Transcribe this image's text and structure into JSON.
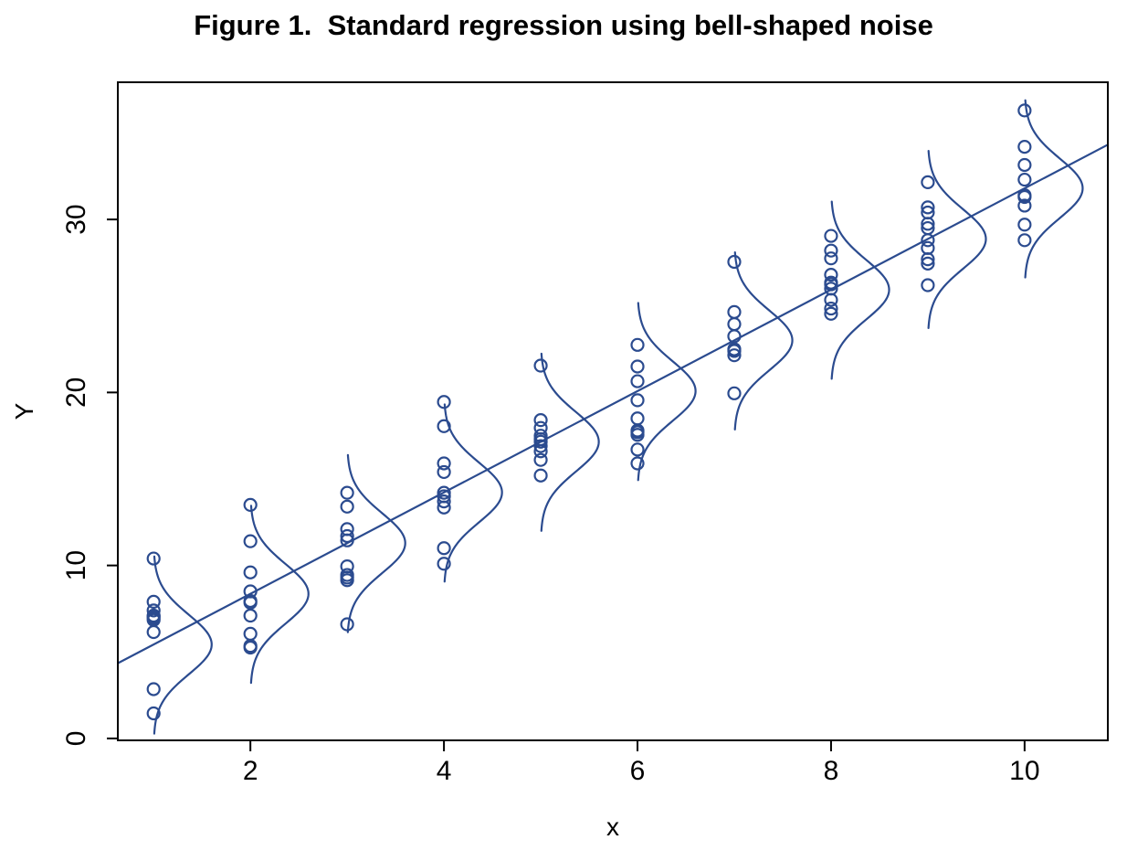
{
  "title": "Figure 1.  Standard regression using bell-shaped noise",
  "colors": {
    "data_blue": "#2b4b8f",
    "axis_black": "#000000",
    "background": "#ffffff"
  },
  "chart_data": {
    "type": "scatter",
    "title": "Figure 1.  Standard regression using bell-shaped noise",
    "xlabel": "x",
    "ylabel": "Y",
    "x_ticks": [
      2,
      4,
      6,
      8,
      10
    ],
    "y_ticks": [
      0,
      10,
      20,
      30
    ],
    "xlim": [
      0.63,
      10.86
    ],
    "ylim": [
      -0.11,
      37.93
    ],
    "grid": "off",
    "legend": "none",
    "regression_line": {
      "intercept": 2.5,
      "slope": 2.93,
      "style": "solid",
      "description": "fitted straight line drawn edge-to-edge across the plot"
    },
    "bell_curves": {
      "description": "vertical Gaussian density curve at each x, baseline on the cluster column, bulging to the right, centered on the fitted value",
      "amplitude_x_units": 0.6,
      "sigma_y_units": 1.72,
      "half_span_y_units": 5.15,
      "at_x": [
        1,
        2,
        3,
        4,
        5,
        6,
        7,
        8,
        9,
        10
      ]
    },
    "series": [
      {
        "x": 1,
        "y_values": [
          10.4,
          7.9,
          7.4,
          7.1,
          7.05,
          6.95,
          6.85,
          6.15,
          2.85,
          1.45
        ]
      },
      {
        "x": 2,
        "y_values": [
          13.5,
          11.4,
          9.6,
          8.5,
          7.95,
          7.85,
          7.1,
          6.05,
          5.35,
          5.25
        ]
      },
      {
        "x": 3,
        "y_values": [
          14.2,
          13.4,
          12.1,
          11.7,
          11.45,
          9.95,
          9.45,
          9.3,
          9.15,
          6.6
        ]
      },
      {
        "x": 4,
        "y_values": [
          19.45,
          18.05,
          15.9,
          15.4,
          14.2,
          14.0,
          13.7,
          13.35,
          11.0,
          10.1
        ]
      },
      {
        "x": 5,
        "y_values": [
          21.55,
          18.4,
          17.95,
          17.5,
          17.3,
          17.15,
          16.9,
          16.6,
          16.1,
          15.2
        ]
      },
      {
        "x": 6,
        "y_values": [
          22.75,
          21.5,
          20.65,
          19.55,
          18.5,
          17.8,
          17.7,
          17.55,
          16.7,
          15.9
        ]
      },
      {
        "x": 7,
        "y_values": [
          27.55,
          24.65,
          23.95,
          23.25,
          22.5,
          22.4,
          22.15,
          19.95
        ]
      },
      {
        "x": 8,
        "y_values": [
          29.05,
          28.2,
          27.75,
          26.8,
          26.35,
          26.25,
          26.0,
          25.35,
          24.85,
          24.55
        ]
      },
      {
        "x": 9,
        "y_values": [
          32.15,
          30.7,
          30.4,
          29.75,
          29.5,
          28.8,
          28.35,
          27.7,
          27.45,
          26.2
        ]
      },
      {
        "x": 10,
        "y_values": [
          36.3,
          34.2,
          33.15,
          32.3,
          31.4,
          31.3,
          30.8,
          29.7,
          28.8
        ]
      }
    ]
  }
}
